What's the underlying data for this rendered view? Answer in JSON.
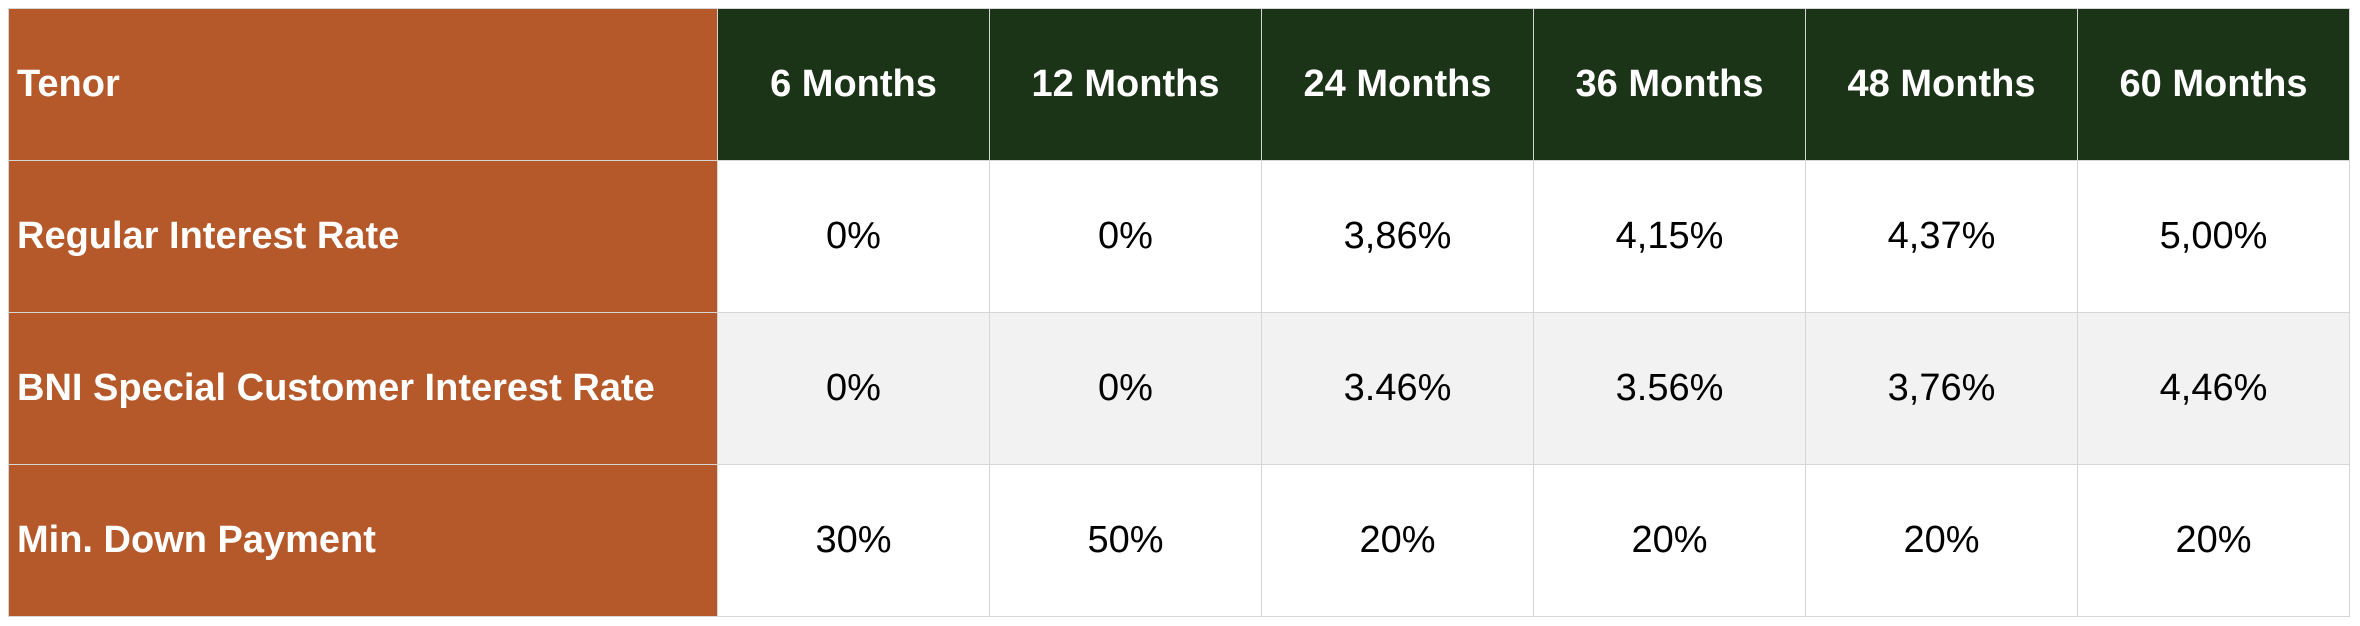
{
  "table": {
    "header": [
      "Tenor",
      "6 Months",
      "12 Months",
      "24 Months",
      "36 Months",
      "48 Months",
      "60 Months"
    ],
    "rows": [
      [
        "Regular Interest Rate",
        "0%",
        "0%",
        "3,86%",
        "4,15%",
        "4,37%",
        "5,00%"
      ],
      [
        "BNI Special Customer Interest Rate",
        "0%",
        "0%",
        "3.46%",
        "3.56%",
        "3,76%",
        "4,46%"
      ],
      [
        "Min. Down Payment",
        "30%",
        "50%",
        "20%",
        "20%",
        "20%",
        "20%"
      ]
    ]
  }
}
